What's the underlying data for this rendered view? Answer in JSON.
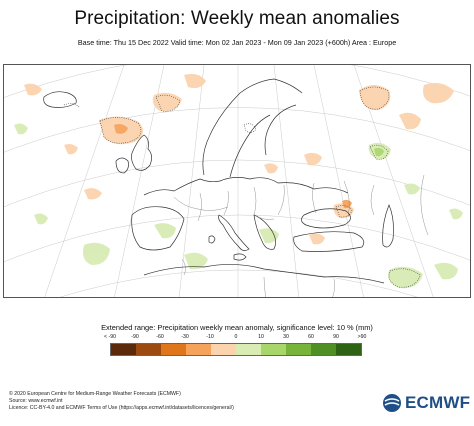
{
  "header": {
    "title": "Precipitation: Weekly mean anomalies",
    "subtitle": "Base time: Thu 15 Dec 2022 Valid time: Mon 02 Jan 2023 - Mon 09 Jan 2023 (+600h) Area : Europe"
  },
  "legend": {
    "title": "Extended range: Precipitation weekly mean anomaly, significance level: 10 % (mm)",
    "labels": [
      "< -90",
      "-90",
      "-60",
      "-30",
      "-10",
      "0",
      "10",
      "30",
      "60",
      "90",
      ">90"
    ],
    "colors": [
      "#5b2a0a",
      "#9c4a10",
      "#e0761c",
      "#f5a35b",
      "#fbd3ad",
      "#ffffff",
      "#d8ecb4",
      "#a9d66b",
      "#78b43a",
      "#4f8f23",
      "#2e6315"
    ]
  },
  "footer": {
    "line1": "© 2020 European Centre for Medium-Range Weather Forecasts (ECMWF)",
    "line2": "Source: www.ecmwf.int",
    "line3": "Licence: CC-BY-4.0 and ECMWF Terms of Use (https://apps.ecmwf.int/datasets/licences/general/)"
  },
  "logo": {
    "text": "ECMWF",
    "icon": "ecmwf-logo-icon"
  }
}
